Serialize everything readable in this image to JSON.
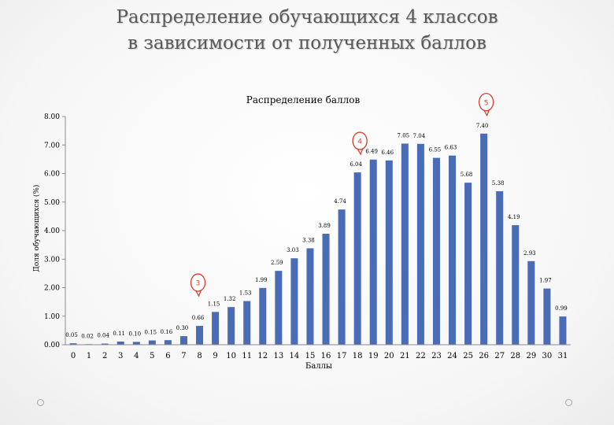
{
  "slide": {
    "title_line1": "Распределение обучающихся 4 классов",
    "title_line2": "в зависимости от полученных баллов"
  },
  "chart_data": {
    "type": "bar",
    "title": "Распределение баллов",
    "xlabel": "Баллы",
    "ylabel": "Доля обучающихся (%)",
    "ylim": [
      0,
      8
    ],
    "yticks": [
      "0.00",
      "1.00",
      "2.00",
      "3.00",
      "4.00",
      "5.00",
      "6.00",
      "7.00",
      "8.00"
    ],
    "categories": [
      "0",
      "1",
      "2",
      "3",
      "4",
      "5",
      "6",
      "7",
      "8",
      "9",
      "10",
      "11",
      "12",
      "13",
      "14",
      "15",
      "16",
      "17",
      "18",
      "19",
      "20",
      "21",
      "22",
      "23",
      "24",
      "25",
      "26",
      "27",
      "28",
      "29",
      "30",
      "31"
    ],
    "values": [
      0.05,
      0.02,
      0.04,
      0.11,
      0.1,
      0.15,
      0.16,
      0.3,
      0.66,
      1.15,
      1.32,
      1.53,
      1.99,
      2.59,
      3.03,
      3.38,
      3.89,
      4.74,
      6.04,
      6.49,
      6.46,
      7.05,
      7.04,
      6.55,
      6.63,
      5.68,
      7.4,
      5.38,
      4.19,
      2.93,
      1.97,
      0.99
    ],
    "labels": [
      "0.05",
      "0.02",
      "0.04",
      "0.11",
      "0.10",
      "0.15",
      "0.16",
      "0.30",
      "0.66",
      "1.15",
      "1.32",
      "1.53",
      "1.99",
      "2.59",
      "3.03",
      "3.38",
      "3.89",
      "4.74",
      "6.04",
      "6.49",
      "6.46",
      "7.05",
      "7.04",
      "6.55",
      "6.63",
      "5.68",
      "7.40",
      "5.38",
      "4.19",
      "2.93",
      "1.97",
      "0.99"
    ],
    "bar_color": "#4a6bb5",
    "grid": false,
    "legend": "none",
    "annotations": [
      {
        "text": "3",
        "category": "8"
      },
      {
        "text": "4",
        "category": "18"
      },
      {
        "text": "5",
        "category": "26"
      }
    ],
    "annotation_color": "#d93a2b"
  }
}
